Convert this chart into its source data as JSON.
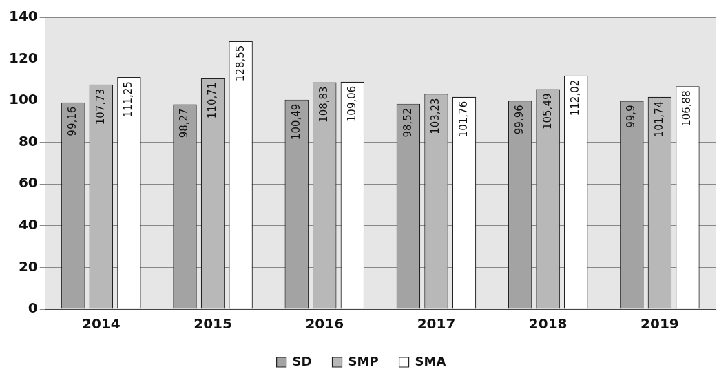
{
  "chart_data": {
    "type": "bar",
    "categories": [
      "2014",
      "2015",
      "2016",
      "2017",
      "2018",
      "2019"
    ],
    "series": [
      {
        "name": "SD",
        "color": "#a3a3a3",
        "values": [
          99.16,
          98.27,
          100.49,
          98.52,
          99.96,
          99.9
        ],
        "value_labels": [
          "99,16",
          "98,27",
          "100,49",
          "98,52",
          "99,96",
          "99,9"
        ]
      },
      {
        "name": "SMP",
        "color": "#b8b8b8",
        "values": [
          107.73,
          110.71,
          108.83,
          103.23,
          105.49,
          101.74
        ],
        "value_labels": [
          "107,73",
          "110,71",
          "108,83",
          "103,23",
          "105,49",
          "101,74"
        ]
      },
      {
        "name": "SMA",
        "color": "#ffffff",
        "values": [
          111.25,
          128.55,
          109.06,
          101.76,
          112.02,
          106.88
        ],
        "value_labels": [
          "111,25",
          "128,55",
          "109,06",
          "101,76",
          "112,02",
          "106,88"
        ]
      }
    ],
    "ylim": [
      0,
      140
    ],
    "yticks": [
      0,
      20,
      40,
      60,
      80,
      100,
      120,
      140
    ],
    "grid": "y",
    "legend": "bottom"
  }
}
